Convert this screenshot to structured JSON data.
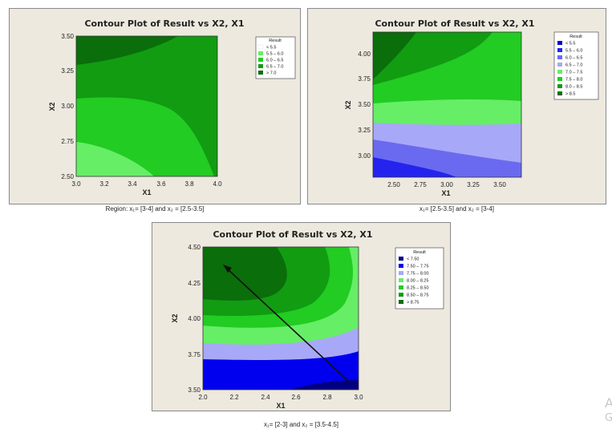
{
  "chart_data": [
    {
      "type": "contour",
      "title": "Contour Plot of Result vs X2, X1",
      "xlabel": "X1",
      "ylabel": "X2",
      "xlim": [
        3.0,
        4.0
      ],
      "ylim": [
        2.5,
        3.5
      ],
      "xticks": [
        "3.0",
        "3.2",
        "3.4",
        "3.6",
        "3.8",
        "4.0"
      ],
      "yticks": [
        "2.50",
        "2.75",
        "3.00",
        "3.25",
        "3.50"
      ],
      "legend_title": "Result",
      "legend": [
        {
          "label": "<   5.5",
          "color": "#ffffff"
        },
        {
          "label": "5.5  –  6.0",
          "color": "#66ee66"
        },
        {
          "label": "6.0  –  6.5",
          "color": "#22cc22"
        },
        {
          "label": "6.5  –  7.0",
          "color": "#129c12"
        },
        {
          "label": ">   7.0",
          "color": "#0a6e0a"
        }
      ],
      "caption": "Region: x₁= [3-4] and x₂ = [2.5-3.5]"
    },
    {
      "type": "contour",
      "title": "Contour Plot of Result vs X2, X1",
      "xlabel": "X1",
      "ylabel": "X2",
      "xlim": [
        2.3,
        3.7
      ],
      "ylim": [
        2.8,
        4.2
      ],
      "xticks": [
        "2.50",
        "2.75",
        "3.00",
        "3.25",
        "3.50"
      ],
      "yticks": [
        "3.00",
        "3.25",
        "3.50",
        "3.75",
        "4.00"
      ],
      "legend_title": "Result",
      "legend": [
        {
          "label": "<   5.5",
          "color": "#0000cc"
        },
        {
          "label": "5.5  –  6.0",
          "color": "#2424ee"
        },
        {
          "label": "6.0  –  6.5",
          "color": "#6a6af0"
        },
        {
          "label": "6.5  –  7.0",
          "color": "#a8a8f8"
        },
        {
          "label": "7.0  –  7.5",
          "color": "#66ee66"
        },
        {
          "label": "7.5  –  8.0",
          "color": "#22cc22"
        },
        {
          "label": "8.0  –  8.5",
          "color": "#129c12"
        },
        {
          "label": ">   8.5",
          "color": "#0a6e0a"
        }
      ],
      "caption": "x₁= [2.5-3.5] and x₂ = [3-4]"
    },
    {
      "type": "contour",
      "title": "Contour Plot of Result vs X2, X1",
      "xlabel": "X1",
      "ylabel": "X2",
      "xlim": [
        2.0,
        3.0
      ],
      "ylim": [
        3.5,
        4.5
      ],
      "xticks": [
        "2.0",
        "2.2",
        "2.4",
        "2.6",
        "2.8",
        "3.0"
      ],
      "yticks": [
        "3.50",
        "3.75",
        "4.00",
        "4.25",
        "4.50"
      ],
      "legend_title": "Result",
      "legend": [
        {
          "label": "<   7.50",
          "color": "#000080"
        },
        {
          "label": "7.50  –  7.75",
          "color": "#0000ee"
        },
        {
          "label": "7.75  –  8.00",
          "color": "#a8a8f8"
        },
        {
          "label": "8.00  –  8.25",
          "color": "#66ee66"
        },
        {
          "label": "8.25  –  8.50",
          "color": "#22cc22"
        },
        {
          "label": "8.50  –  8.75",
          "color": "#129c12"
        },
        {
          "label": ">   8.75",
          "color": "#0a6e0a"
        }
      ],
      "arrow": {
        "from": [
          2.95,
          3.55
        ],
        "to": [
          2.13,
          4.38
        ]
      },
      "caption": "x₁= [2-3] and x₂ = [3.5-4.5]"
    }
  ],
  "watermark": [
    "A",
    "G"
  ]
}
